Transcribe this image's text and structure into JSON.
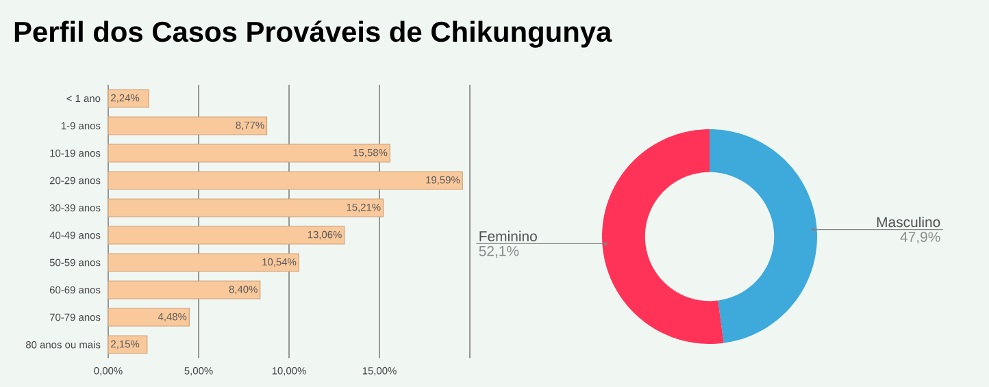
{
  "chart_data": [
    {
      "type": "bar",
      "title": "Perfil dos Casos Prováveis de Chikungunya",
      "orientation": "horizontal",
      "categories": [
        "<  1 ano",
        "1-9 anos",
        "10-19 anos",
        "20-29 anos",
        "30-39 anos",
        "40-49 anos",
        "50-59 anos",
        "60-69 anos",
        "70-79 anos",
        "80 anos ou mais"
      ],
      "values": [
        2.24,
        8.77,
        15.58,
        19.59,
        15.21,
        13.06,
        10.54,
        8.4,
        4.48,
        2.15
      ],
      "value_labels": [
        "2,24%",
        "8,77%",
        "15,58%",
        "19,59%",
        "15,21%",
        "13,06%",
        "10,54%",
        "8,40%",
        "4,48%",
        "2,15%"
      ],
      "color": "#f9c99c",
      "xlim": [
        0,
        20
      ],
      "xticks": [
        {
          "value": 0,
          "label": "0,00%"
        },
        {
          "value": 5,
          "label": "5,00%"
        },
        {
          "value": 10,
          "label": "10,00%"
        },
        {
          "value": 15,
          "label": "15,00%"
        },
        {
          "value": 20,
          "label": null
        }
      ],
      "grid": "x"
    },
    {
      "type": "donut",
      "categories": [
        "Masculino",
        "Feminino"
      ],
      "values": [
        47.9,
        52.1
      ],
      "value_labels": [
        "47,9%",
        "52,1%"
      ],
      "colors": [
        "#3ea9db",
        "#ff3358"
      ]
    }
  ]
}
